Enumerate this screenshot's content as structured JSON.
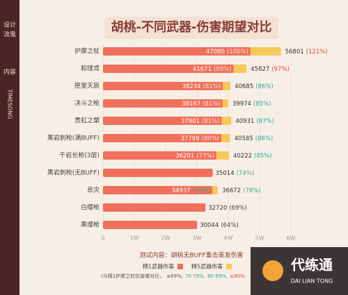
{
  "chart_data": {
    "type": "bar",
    "orientation": "horizontal",
    "title": "胡桃-不同武器-伤害期望对比",
    "sidebar": [
      "设计",
      "流鬼",
      "内容",
      "TIMESONG"
    ],
    "categories": [
      "护摩之杖",
      "和璞鸢",
      "匣里灭辰",
      "决斗之枪",
      "贯虹之槊",
      "黑岩刺枪(满BUFF)",
      "千岩长枪(3层)",
      "黑岩刺枪(无BUFF)",
      "息灾",
      "白缨枪",
      "黑缨枪"
    ],
    "series": [
      {
        "name": "精1武器伤害",
        "color": "#f0705c",
        "values": [
          47080,
          41671,
          38234,
          38167,
          37901,
          37799,
          36201,
          35014,
          34937,
          32720,
          30044
        ],
        "percent_labels": [
          "(100%)",
          "(89%)",
          "(81%)",
          "(81%)",
          "(81%)",
          "(80%)",
          "(77%)",
          "(74%)",
          "(74%)",
          "(69%)",
          "(64%)"
        ],
        "percent_colors": [
          "#ffe3dc",
          "#ffe3dc",
          "#ffe3dc",
          "#ffe3dc",
          "#ffe3dc",
          "#ffe3dc",
          "#ffe3dc",
          "#4aa86a",
          "#4aa86a",
          "#444444",
          "#444444"
        ]
      },
      {
        "name": "精5武器伤害",
        "color": "#f7c85a",
        "values": [
          56801,
          45827,
          40685,
          39974,
          40931,
          40585,
          40222,
          null,
          36672,
          null,
          null
        ],
        "percent_labels": [
          "(121%)",
          "(97%)",
          "(86%)",
          "(85%)",
          "(87%)",
          "(86%)",
          "(85%)",
          null,
          "(78%)",
          null,
          null
        ],
        "percent_colors": [
          "#e0453a",
          "#e0453a",
          "#2aa6a6",
          "#2aa6a6",
          "#2aa6a6",
          "#2aa6a6",
          "#2aa6a6",
          null,
          "#4aa86a",
          null,
          null
        ]
      }
    ],
    "xlim": [
      0,
      60000
    ],
    "xticks": [
      0,
      {
        "value": 10000,
        "label": "1W"
      },
      {
        "value": 20000,
        "label": "2W"
      },
      {
        "value": 30000,
        "label": "3W"
      },
      {
        "value": 40000,
        "label": "4W"
      },
      {
        "value": 50000,
        "label": "5W"
      },
      {
        "value": 60000,
        "label": "6W"
      }
    ],
    "grid": true,
    "footer": "测试内容：胡桃无BUFF重击蒸发伤害",
    "note": [
      "(与精1护摩之杖伤害做对比，",
      "≤69%,",
      "70-79%,",
      "80-89%,",
      "≥90%"
    ],
    "note_colors": [
      "#555555",
      "#555555",
      "#4aa86a",
      "#2aa6a6",
      "#e0453a"
    ],
    "watermark": {
      "name": "代练通",
      "sub": "DAI LIAN TONG"
    }
  }
}
